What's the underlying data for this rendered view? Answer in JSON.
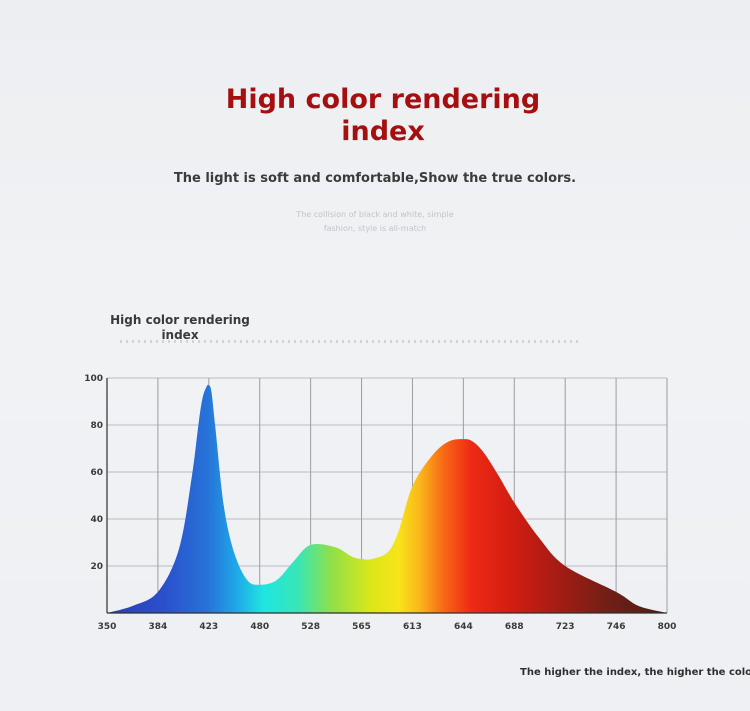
{
  "header": {
    "title_lines": [
      "High color rendering",
      "index"
    ],
    "subtitle": "The light is soft and comfortable,Show the true colors.",
    "faint_lines": [
      "The collision of black and white, simple",
      "fashion, style is all-match"
    ]
  },
  "chart_heading_lines": [
    "High color rendering",
    "index"
  ],
  "footnote": "The higher the index, the higher the color re",
  "chart_data": {
    "type": "area",
    "title": "High color rendering index",
    "x_ticks": [
      350,
      384,
      423,
      480,
      528,
      565,
      613,
      644,
      688,
      723,
      746,
      800
    ],
    "y_ticks": [
      20,
      40,
      60,
      80,
      100
    ],
    "ylim": [
      0,
      100
    ],
    "grid": true,
    "gradient_fill": "spectrum blue-cyan-green-yellow-red-dark brown",
    "series": [
      {
        "x": [
          350,
          367,
          384,
          400,
          410,
          415,
          418,
          421,
          423,
          426,
          430,
          440,
          452,
          466,
          480,
          496,
          512,
          528,
          546,
          558,
          565,
          575,
          590,
          600,
          613,
          625,
          635,
          644,
          652,
          662,
          675,
          688,
          705,
          723,
          746,
          770,
          800
        ],
        "y": [
          0,
          3,
          9,
          27,
          58,
          80,
          91,
          96,
          97,
          94,
          80,
          45,
          25,
          14,
          12,
          14,
          22,
          29,
          28,
          24,
          23,
          23,
          26,
          35,
          54,
          67,
          73,
          74,
          73,
          68,
          58,
          47,
          32,
          20,
          9,
          3,
          0
        ]
      }
    ]
  }
}
